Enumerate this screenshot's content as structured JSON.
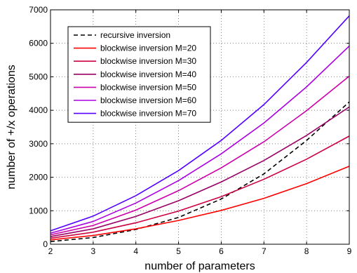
{
  "chart_data": {
    "type": "line",
    "title": "",
    "xlabel": "number of parameters",
    "ylabel": "number of +/x operations",
    "xlim": [
      2,
      9
    ],
    "ylim": [
      0,
      7000
    ],
    "xticks": [
      2,
      3,
      4,
      5,
      6,
      7,
      8,
      9
    ],
    "yticks": [
      0,
      1000,
      2000,
      3000,
      4000,
      5000,
      6000,
      7000
    ],
    "grid": true,
    "legend_position": "top-left",
    "x": [
      2,
      3,
      4,
      5,
      6,
      7,
      8,
      9
    ],
    "series": [
      {
        "name": "recursive inversion",
        "color": "#000000",
        "dash": "dashed",
        "values": [
          80,
          200,
          440,
          800,
          1350,
          2100,
          3100,
          4250
        ]
      },
      {
        "name": "blockwise inversion M=20",
        "color": "#ff0000",
        "dash": "solid",
        "values": [
          130,
          260,
          460,
          710,
          1010,
          1370,
          1810,
          2330
        ]
      },
      {
        "name": "blockwise inversion M=30",
        "color": "#cc0040",
        "dash": "solid",
        "values": [
          180,
          360,
          640,
          990,
          1420,
          1940,
          2540,
          3230
        ]
      },
      {
        "name": "blockwise inversion M=40",
        "color": "#990066",
        "dash": "solid",
        "values": [
          230,
          460,
          830,
          1300,
          1860,
          2500,
          3250,
          4100
        ]
      },
      {
        "name": "blockwise inversion M=50",
        "color": "#cc00aa",
        "dash": "solid",
        "values": [
          280,
          560,
          1020,
          1600,
          2280,
          3060,
          3990,
          5020
        ]
      },
      {
        "name": "blockwise inversion M=60",
        "color": "#aa00e0",
        "dash": "solid",
        "values": [
          330,
          680,
          1230,
          1900,
          2700,
          3620,
          4700,
          5920
        ]
      },
      {
        "name": "blockwise inversion M=70",
        "color": "#5500ff",
        "dash": "solid",
        "values": [
          400,
          840,
          1450,
          2200,
          3100,
          4170,
          5430,
          6820
        ]
      }
    ]
  }
}
